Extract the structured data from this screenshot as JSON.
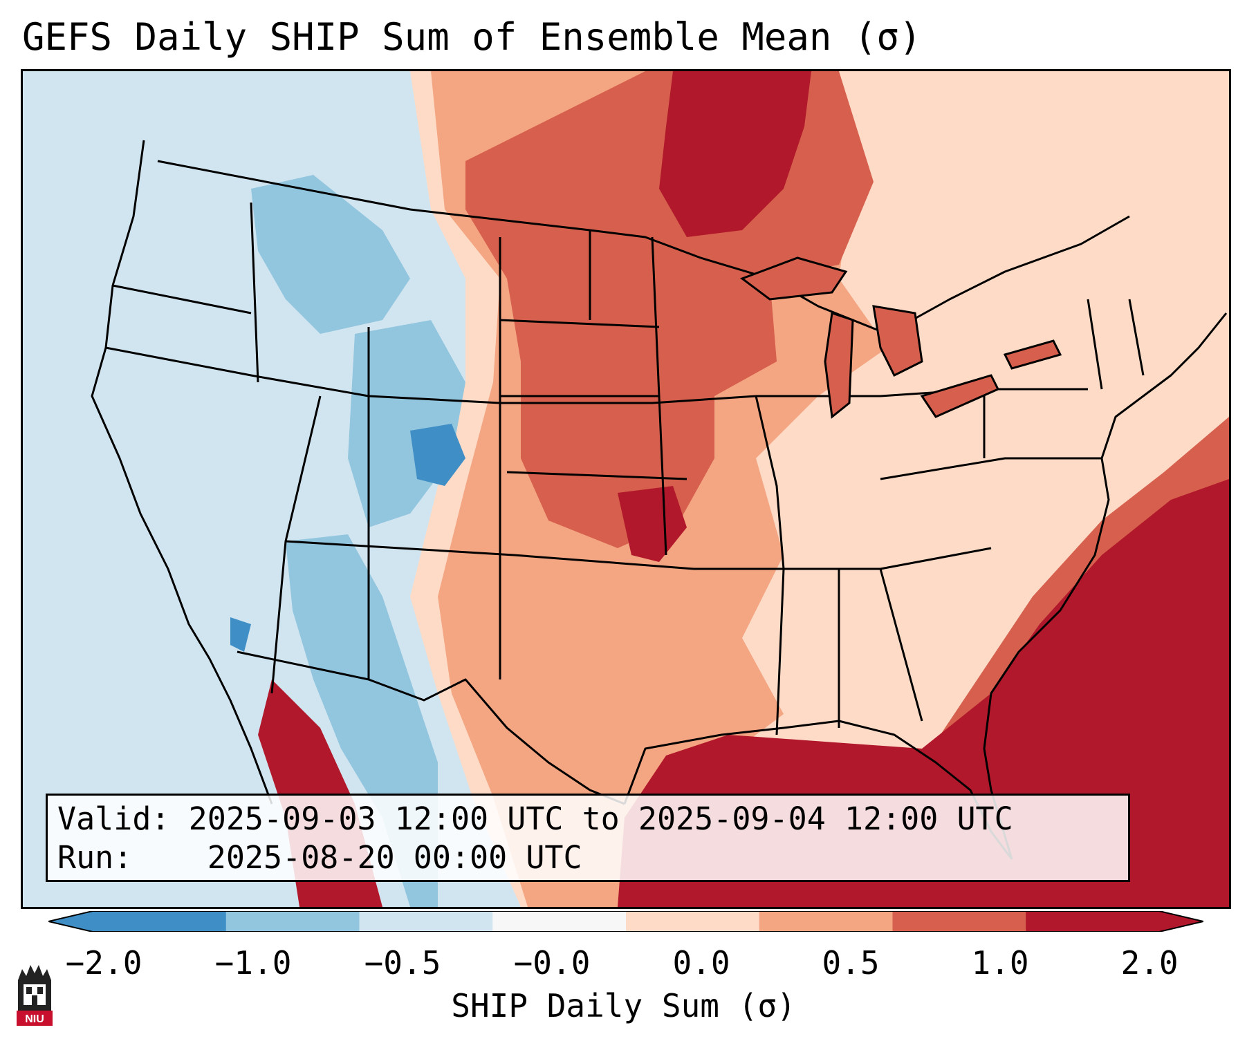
{
  "title": "GEFS Daily SHIP Sum of Ensemble Mean (σ)",
  "info": {
    "valid_label": "Valid:",
    "valid_value": "2025-09-03 12:00 UTC to 2025-09-04 12:00 UTC",
    "run_label": "Run:",
    "run_value": "2025-08-20 00:00 UTC"
  },
  "colorbar": {
    "label": "SHIP Daily Sum (σ)",
    "ticks": [
      "−2.0",
      "−1.0",
      "−0.5",
      "−0.0",
      "0.0",
      "0.5",
      "1.0",
      "2.0"
    ],
    "colors": [
      "#3f8fc6",
      "#92c5de",
      "#d1e5f0",
      "#f7f7f7",
      "#fddbc7",
      "#f4a582",
      "#d6604d",
      "#b2182b"
    ],
    "extend": "both"
  },
  "logo": {
    "text": "NIU",
    "name": "niu-logo"
  },
  "palette": {
    "deep_blue": "#3f8fc6",
    "mid_blue": "#92c5de",
    "light_blue": "#d1e5f0",
    "peach": "#fddbc7",
    "salmon": "#f4a582",
    "red": "#d6604d",
    "dark_red": "#b2182b"
  }
}
